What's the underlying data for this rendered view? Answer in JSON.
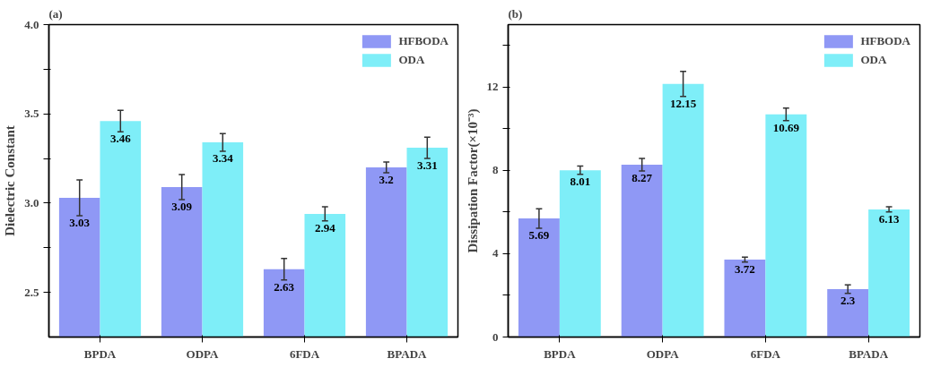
{
  "chart_data": [
    {
      "type": "bar",
      "title": "(a)",
      "ylabel": "Dielectric Constant",
      "categories": [
        "BPDA",
        "ODPA",
        "6FDA",
        "BPADA"
      ],
      "series": [
        {
          "name": "HFBODA",
          "color": "#8f98f5",
          "values": [
            3.03,
            3.09,
            2.63,
            3.2
          ],
          "errors": [
            0.1,
            0.07,
            0.06,
            0.03
          ]
        },
        {
          "name": "ODA",
          "color": "#7eeef8",
          "values": [
            3.46,
            3.34,
            2.94,
            3.31
          ],
          "errors": [
            0.06,
            0.05,
            0.04,
            0.06
          ]
        }
      ],
      "ylim": [
        2.25,
        4.0
      ],
      "yticks": [
        2.5,
        {
          "value": 2.75,
          "label": null
        },
        {
          "value": 3,
          "label": "3.0"
        },
        {
          "value": 3.25,
          "label": null
        },
        3.5,
        {
          "value": 3.75,
          "label": null
        },
        {
          "value": 4,
          "label": "4.0"
        }
      ],
      "data_labels": true,
      "legend": "top right",
      "grid": false
    },
    {
      "type": "bar",
      "title": "(b)",
      "ylabel": "Dissipation Factor(×10⁻³)",
      "categories": [
        "BPDA",
        "ODPA",
        "6FDA",
        "BPADA"
      ],
      "series": [
        {
          "name": "HFBODA",
          "color": "#8f98f5",
          "values": [
            5.69,
            8.27,
            3.72,
            2.3
          ],
          "errors": [
            0.47,
            0.3,
            0.12,
            0.2
          ]
        },
        {
          "name": "ODA",
          "color": "#7eeef8",
          "values": [
            8.01,
            12.15,
            10.69,
            6.13
          ],
          "errors": [
            0.2,
            0.6,
            0.3,
            0.12
          ]
        }
      ],
      "ylim": [
        0,
        15
      ],
      "yticks": [
        0,
        {
          "value": 2,
          "label": null
        },
        4,
        {
          "value": 6,
          "label": null
        },
        8,
        {
          "value": 10,
          "label": null
        },
        12,
        {
          "value": 14,
          "label": null
        }
      ],
      "data_labels": true,
      "legend": "top right",
      "grid": false
    }
  ]
}
